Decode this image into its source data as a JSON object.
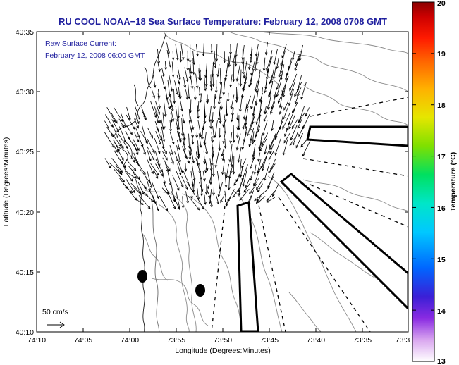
{
  "chart_data": {
    "type": "map",
    "title": "RU COOL  NOAA−18  Sea Surface Temperature:  February 12, 2008 0708 GMT",
    "annotation_lines": [
      "Raw Surface Current:",
      "February 12, 2008 06:00 GMT"
    ],
    "xlabel": "Longitude (Degrees:Minutes)",
    "ylabel": "Latitude (Degrees:Minutes)",
    "x_tick_labels": [
      "74:10",
      "74:05",
      "74:00",
      "73:55",
      "73:50",
      "73:45",
      "73:40",
      "73:35",
      "73:3"
    ],
    "y_tick_labels": [
      "40:35",
      "40:30",
      "40:25",
      "40:20",
      "40:15",
      "40:10"
    ],
    "scale_label": "50 cm/s",
    "colorbar": {
      "label": "Temperature (°C)",
      "min": 13,
      "max": 20,
      "tick_labels": [
        "20",
        "19",
        "18",
        "17",
        "16",
        "15",
        "14",
        "13"
      ]
    }
  },
  "colors": {
    "title": "#1f1f9e",
    "contour": "#8a8a8a",
    "coast": "#1a1a1a",
    "vector": "#000000"
  }
}
